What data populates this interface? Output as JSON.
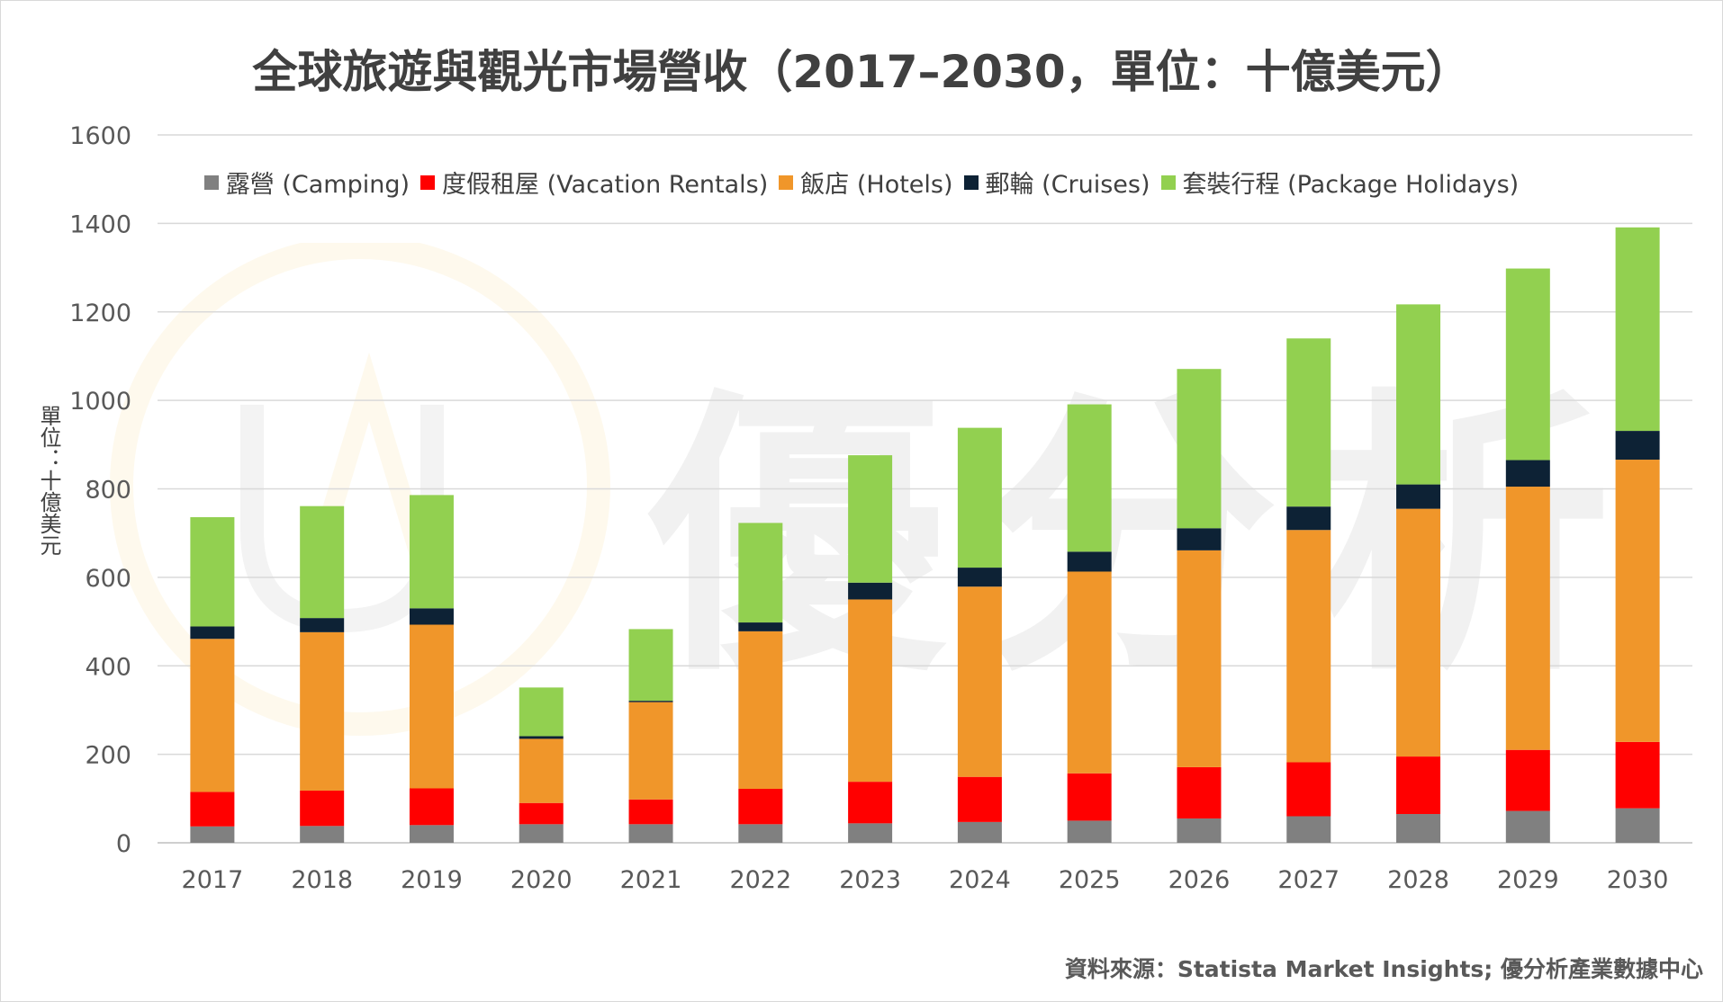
{
  "chart_data": {
    "type": "bar",
    "stacked": true,
    "title": "全球旅遊與觀光市場營收（2017–2030，單位：十億美元）",
    "ylabel": "單位：十億美元",
    "xlabel": "",
    "ylim": [
      0,
      1600
    ],
    "yticks": [
      0,
      200,
      400,
      600,
      800,
      1000,
      1200,
      1400,
      1600
    ],
    "grid": true,
    "legend_position": "top",
    "categories": [
      "2017",
      "2018",
      "2019",
      "2020",
      "2021",
      "2022",
      "2023",
      "2024",
      "2025",
      "2026",
      "2027",
      "2028",
      "2029",
      "2030"
    ],
    "series": [
      {
        "name": "露營 (Camping)",
        "color": "#808080",
        "values": [
          37,
          38,
          40,
          42,
          42,
          42,
          44,
          47,
          50,
          55,
          60,
          65,
          72,
          78
        ]
      },
      {
        "name": "度假租屋 (Vacation Rentals)",
        "color": "#ff0000",
        "values": [
          78,
          80,
          83,
          48,
          56,
          80,
          94,
          102,
          107,
          116,
          122,
          130,
          138,
          150
        ]
      },
      {
        "name": "飯店 (Hotels)",
        "color": "#f0962a",
        "values": [
          346,
          358,
          370,
          145,
          220,
          356,
          412,
          430,
          456,
          490,
          525,
          560,
          595,
          638
        ]
      },
      {
        "name": "郵輪 (Cruises)",
        "color": "#0d2235",
        "values": [
          28,
          32,
          37,
          6,
          3,
          20,
          38,
          43,
          45,
          50,
          53,
          55,
          60,
          65
        ]
      },
      {
        "name": "套裝行程 (Package Holidays)",
        "color": "#92d050",
        "values": [
          247,
          253,
          256,
          110,
          162,
          225,
          288,
          316,
          333,
          360,
          380,
          407,
          433,
          460
        ]
      }
    ]
  },
  "source": "資料來源：Statista Market Insights; 優分析產業數據中心",
  "watermark": {
    "text": "優分析",
    "color": "#f5c242"
  }
}
